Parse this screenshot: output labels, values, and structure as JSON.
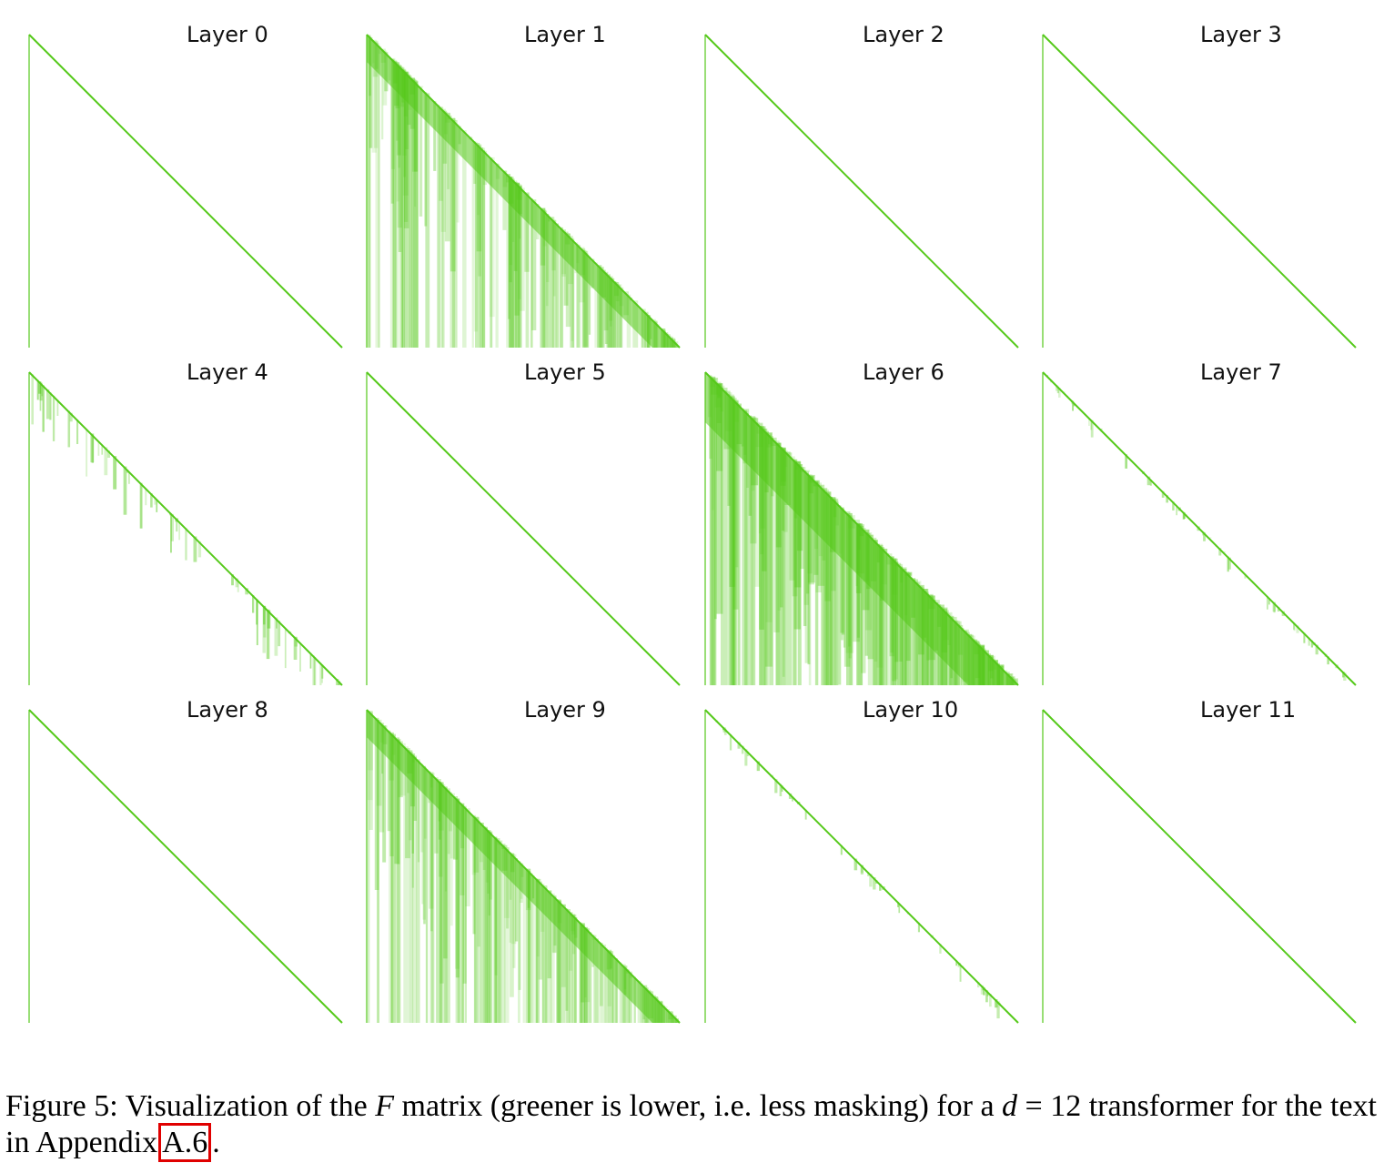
{
  "figure": {
    "green": "#55c91a",
    "panels": [
      {
        "title": "Layer 0",
        "style": "thin"
      },
      {
        "title": "Layer 1",
        "style": "dense"
      },
      {
        "title": "Layer 2",
        "style": "thin"
      },
      {
        "title": "Layer 3",
        "style": "thin"
      },
      {
        "title": "Layer 4",
        "style": "sparse"
      },
      {
        "title": "Layer 5",
        "style": "thin"
      },
      {
        "title": "Layer 6",
        "style": "very-dense"
      },
      {
        "title": "Layer 7",
        "style": "light"
      },
      {
        "title": "Layer 8",
        "style": "thin"
      },
      {
        "title": "Layer 9",
        "style": "dense"
      },
      {
        "title": "Layer 10",
        "style": "light"
      },
      {
        "title": "Layer 11",
        "style": "thin"
      }
    ]
  },
  "caption": {
    "label": "Figure 5:",
    "text_before_math": "Visualization of the",
    "math_var": "F",
    "text_middle": "matrix (greener is lower, i.e. less masking) for a",
    "math_d": "d",
    "equals": "=",
    "d_value": "12",
    "text_after": "transformer for the text in Appendix",
    "ref": "A.6",
    "period": "."
  }
}
